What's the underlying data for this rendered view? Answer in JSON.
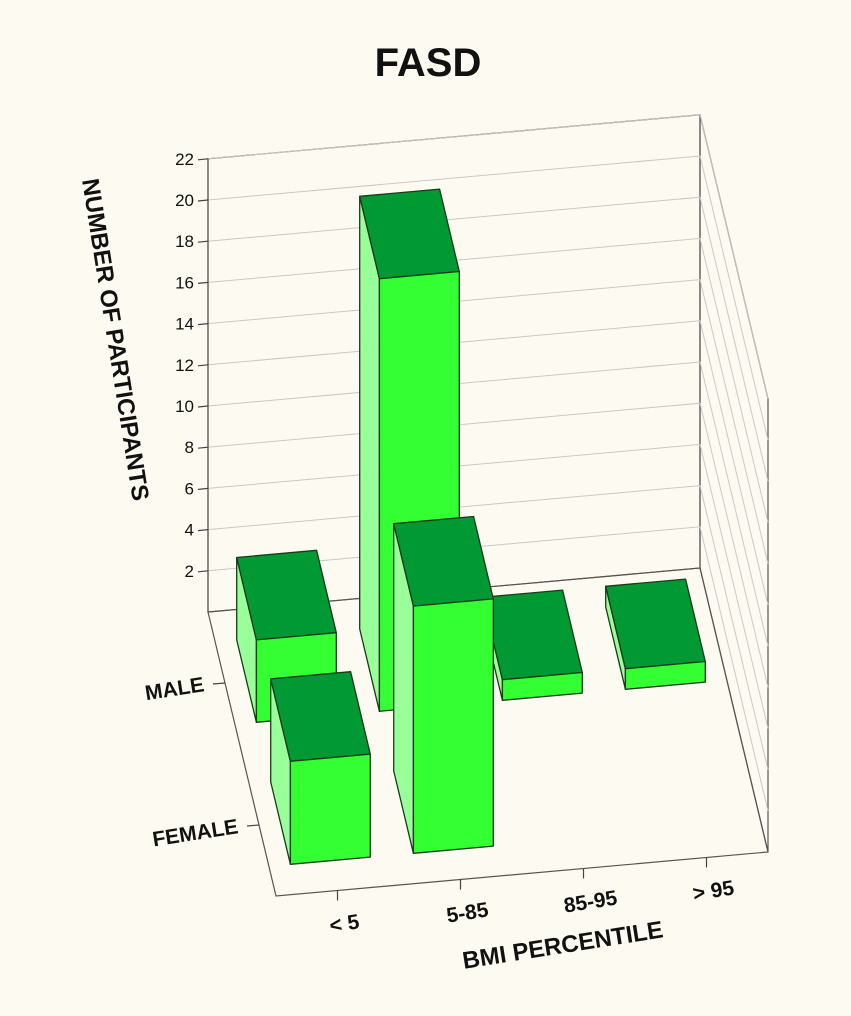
{
  "chart_data": {
    "type": "bar3d",
    "title": "FASD",
    "xlabel": "BMI PERCENTILE",
    "ylabel": "NUMBER OF PARTICIPANTS",
    "x_categories": [
      "< 5",
      "5-85",
      "85-95",
      "> 95"
    ],
    "z_categories": [
      "MALE",
      "FEMALE"
    ],
    "y_ticks": [
      "2",
      "4",
      "6",
      "8",
      "10",
      "12",
      "14",
      "16",
      "18",
      "20",
      "22"
    ],
    "ylim": [
      0,
      22
    ],
    "series": [
      {
        "name": "MALE",
        "values": [
          4,
          21,
          1,
          1
        ]
      },
      {
        "name": "FEMALE",
        "values": [
          5,
          12,
          0,
          0
        ]
      }
    ],
    "colors": {
      "front": "#33ff33",
      "side": "#99ff99",
      "top": "#009933",
      "background": "#fdfbf1"
    },
    "grid": true
  }
}
